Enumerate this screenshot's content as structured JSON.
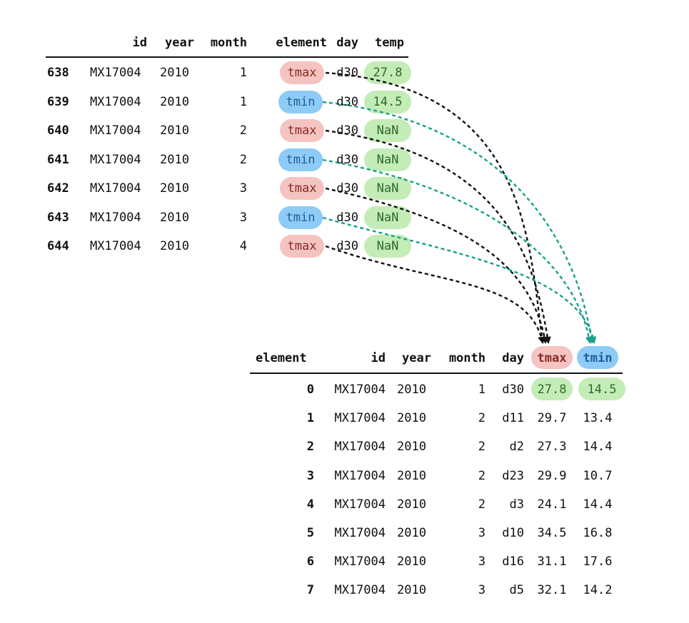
{
  "colors": {
    "tmax": "#f5c3c0",
    "tmin": "#8ecbf6",
    "value": "#c4ecb6",
    "tmax_text": "#8a2a26",
    "tmin_text": "#1c5f9a",
    "value_text": "#2d6a2d",
    "arrow_tmax": "#111111",
    "arrow_tmin": "#17a08a"
  },
  "top_table": {
    "headers": [
      "id",
      "year",
      "month",
      "element",
      "day",
      "temp"
    ],
    "rows": [
      {
        "index": "638",
        "id": "MX17004",
        "year": "2010",
        "month": "1",
        "element": "tmax",
        "day": "d30",
        "temp": "27.8"
      },
      {
        "index": "639",
        "id": "MX17004",
        "year": "2010",
        "month": "1",
        "element": "tmin",
        "day": "d30",
        "temp": "14.5"
      },
      {
        "index": "640",
        "id": "MX17004",
        "year": "2010",
        "month": "2",
        "element": "tmax",
        "day": "d30",
        "temp": "NaN"
      },
      {
        "index": "641",
        "id": "MX17004",
        "year": "2010",
        "month": "2",
        "element": "tmin",
        "day": "d30",
        "temp": "NaN"
      },
      {
        "index": "642",
        "id": "MX17004",
        "year": "2010",
        "month": "3",
        "element": "tmax",
        "day": "d30",
        "temp": "NaN"
      },
      {
        "index": "643",
        "id": "MX17004",
        "year": "2010",
        "month": "3",
        "element": "tmin",
        "day": "d30",
        "temp": "NaN"
      },
      {
        "index": "644",
        "id": "MX17004",
        "year": "2010",
        "month": "4",
        "element": "tmax",
        "day": "d30",
        "temp": "NaN"
      }
    ]
  },
  "bottom_table": {
    "index_label": "element",
    "headers": [
      "id",
      "year",
      "month",
      "day",
      "tmax",
      "tmin"
    ],
    "rows": [
      {
        "index": "0",
        "id": "MX17004",
        "year": "2010",
        "month": "1",
        "day": "d30",
        "tmax": "27.8",
        "tmin": "14.5"
      },
      {
        "index": "1",
        "id": "MX17004",
        "year": "2010",
        "month": "2",
        "day": "d11",
        "tmax": "29.7",
        "tmin": "13.4"
      },
      {
        "index": "2",
        "id": "MX17004",
        "year": "2010",
        "month": "2",
        "day": "d2",
        "tmax": "27.3",
        "tmin": "14.4"
      },
      {
        "index": "3",
        "id": "MX17004",
        "year": "2010",
        "month": "2",
        "day": "d23",
        "tmax": "29.9",
        "tmin": "10.7"
      },
      {
        "index": "4",
        "id": "MX17004",
        "year": "2010",
        "month": "2",
        "day": "d3",
        "tmax": "24.1",
        "tmin": "14.4"
      },
      {
        "index": "5",
        "id": "MX17004",
        "year": "2010",
        "month": "3",
        "day": "d10",
        "tmax": "34.5",
        "tmin": "16.8"
      },
      {
        "index": "6",
        "id": "MX17004",
        "year": "2010",
        "month": "3",
        "day": "d16",
        "tmax": "31.1",
        "tmin": "17.6"
      },
      {
        "index": "7",
        "id": "MX17004",
        "year": "2010",
        "month": "3",
        "day": "d5",
        "tmax": "32.1",
        "tmin": "14.2"
      }
    ]
  }
}
